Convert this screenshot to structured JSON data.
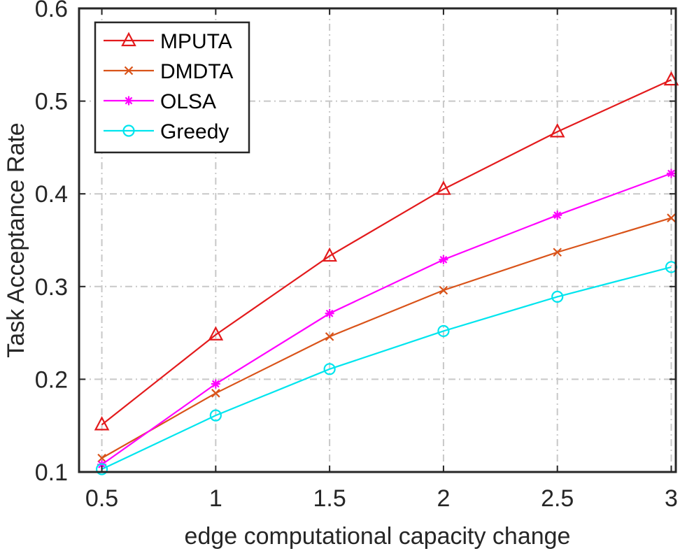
{
  "chart_data": {
    "type": "line",
    "xlabel": "edge computational capacity change",
    "ylabel": "Task Acceptance Rate",
    "xlim": [
      0.4,
      3.02
    ],
    "ylim": [
      0.1,
      0.6
    ],
    "x": [
      0.5,
      1,
      1.5,
      2,
      2.5,
      3
    ],
    "xticks": [
      0.5,
      1,
      1.5,
      2,
      2.5,
      3
    ],
    "yticks": [
      0.1,
      0.2,
      0.3,
      0.4,
      0.5,
      0.6
    ],
    "grid": true,
    "legend_position": "top-left",
    "series": [
      {
        "name": "MPUTA",
        "color": "#e31a1c",
        "marker": "triangle-icon",
        "values": [
          0.151,
          0.248,
          0.333,
          0.405,
          0.467,
          0.523
        ]
      },
      {
        "name": "DMDTA",
        "color": "#d95319",
        "marker": "cross-icon",
        "values": [
          0.115,
          0.185,
          0.246,
          0.296,
          0.337,
          0.374
        ]
      },
      {
        "name": "OLSA",
        "color": "#ff00ff",
        "marker": "asterisk-icon",
        "values": [
          0.108,
          0.195,
          0.271,
          0.329,
          0.377,
          0.422
        ]
      },
      {
        "name": "Greedy",
        "color": "#00e5ee",
        "marker": "circle-icon",
        "values": [
          0.103,
          0.161,
          0.211,
          0.252,
          0.289,
          0.321
        ]
      }
    ]
  }
}
